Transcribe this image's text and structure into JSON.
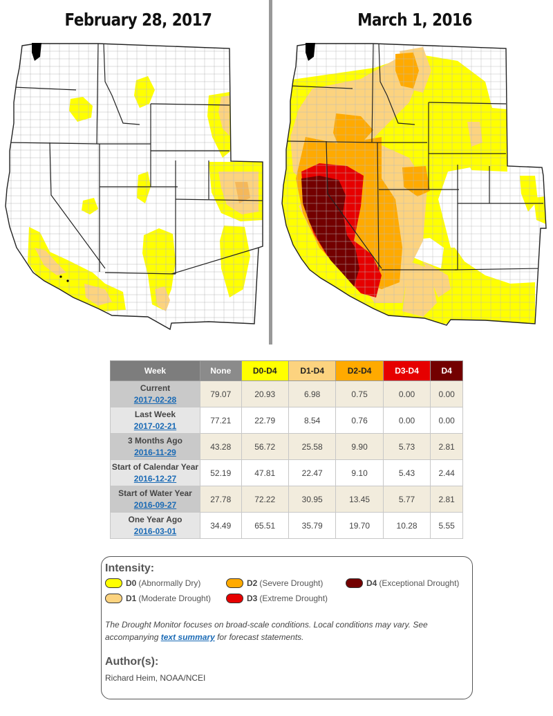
{
  "maps": {
    "left_title": "February 28, 2017",
    "right_title": "March 1, 2016"
  },
  "colors": {
    "none": "#ffffff",
    "d0": "#ffff00",
    "d1": "#fcd37f",
    "d2": "#ffaa00",
    "d3": "#e60000",
    "d4": "#730000",
    "link": "#1a6ab5"
  },
  "table": {
    "headers": [
      "Week",
      "None",
      "D0-D4",
      "D1-D4",
      "D2-D4",
      "D3-D4",
      "D4"
    ],
    "rows": [
      {
        "label": "Current",
        "date": "2017-02-28",
        "values": [
          "79.07",
          "20.93",
          "6.98",
          "0.75",
          "0.00",
          "0.00"
        ]
      },
      {
        "label": "Last Week",
        "date": "2017-02-21",
        "values": [
          "77.21",
          "22.79",
          "8.54",
          "0.76",
          "0.00",
          "0.00"
        ]
      },
      {
        "label": "3 Months Ago",
        "date": "2016-11-29",
        "values": [
          "43.28",
          "56.72",
          "25.58",
          "9.90",
          "5.73",
          "2.81"
        ]
      },
      {
        "label": "Start of Calendar Year",
        "date": "2016-12-27",
        "values": [
          "52.19",
          "47.81",
          "22.47",
          "9.10",
          "5.43",
          "2.44"
        ]
      },
      {
        "label": "Start of Water Year",
        "date": "2016-09-27",
        "values": [
          "27.78",
          "72.22",
          "30.95",
          "13.45",
          "5.77",
          "2.81"
        ]
      },
      {
        "label": "One Year Ago",
        "date": "2016-03-01",
        "values": [
          "34.49",
          "65.51",
          "35.79",
          "19.70",
          "10.28",
          "5.55"
        ]
      }
    ]
  },
  "legend": {
    "heading": "Intensity:",
    "items": [
      {
        "code": "D0",
        "desc": "(Abnormally Dry)"
      },
      {
        "code": "D1",
        "desc": "(Moderate Drought)"
      },
      {
        "code": "D2",
        "desc": "(Severe Drought)"
      },
      {
        "code": "D3",
        "desc": "(Extreme Drought)"
      },
      {
        "code": "D4",
        "desc": "(Exceptional Drought)"
      }
    ],
    "note_before": "The Drought Monitor focuses on broad-scale conditions. Local conditions may vary. See accompanying ",
    "note_link": "text summary",
    "note_after": " for forecast statements.",
    "author_heading": "Author(s):",
    "author": "Richard Heim, NOAA/NCEI"
  }
}
